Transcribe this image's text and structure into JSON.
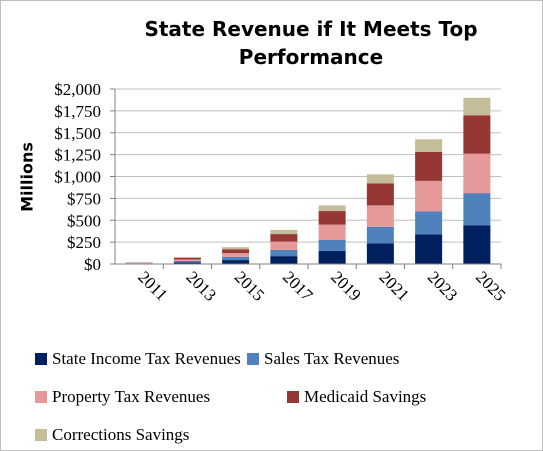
{
  "chart_data": {
    "type": "bar",
    "stacked": true,
    "title": "State Revenue if It Meets Top\nPerformance",
    "ylabel": "Millions",
    "xlabel": "",
    "ylim": [
      0,
      2000
    ],
    "yticks": [
      "$0",
      "$250",
      "$500",
      "$750",
      "$1,000",
      "$1,250",
      "$1,500",
      "$1,750",
      "$2,000"
    ],
    "categories": [
      "2011",
      "2013",
      "2015",
      "2017",
      "2019",
      "2021",
      "2023",
      "2025"
    ],
    "grid": true,
    "legend_position": "bottom",
    "series": [
      {
        "name": "State Income Tax Revenues",
        "color": "#002060",
        "values": [
          4,
          20,
          45,
          90,
          150,
          235,
          340,
          440
        ]
      },
      {
        "name": "Sales Tax Revenues",
        "color": "#4f81bd",
        "values": [
          4,
          16,
          37,
          72,
          125,
          190,
          260,
          370
        ]
      },
      {
        "name": "Property Tax Revenues",
        "color": "#e6999b",
        "values": [
          4,
          16,
          42,
          95,
          175,
          245,
          350,
          450
        ]
      },
      {
        "name": "Medicaid Savings",
        "color": "#953735",
        "values": [
          4,
          18,
          45,
          85,
          155,
          250,
          330,
          440
        ]
      },
      {
        "name": "Corrections Savings",
        "color": "#c4bd97",
        "values": [
          2,
          10,
          23,
          48,
          65,
          105,
          145,
          200
        ]
      }
    ]
  }
}
